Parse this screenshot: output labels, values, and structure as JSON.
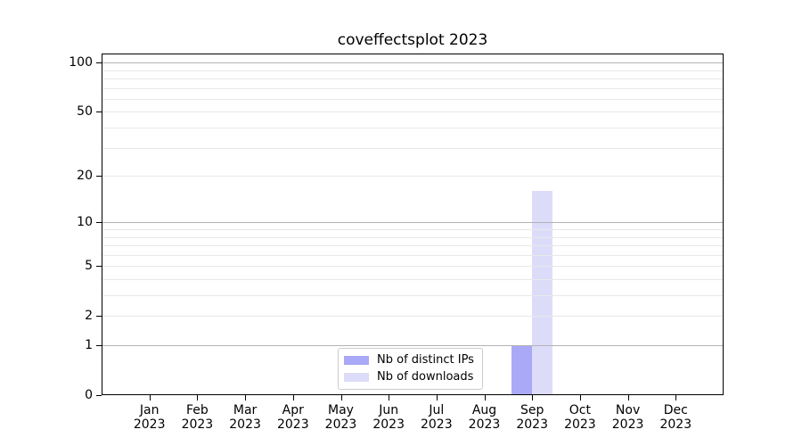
{
  "title": "coveffectsplot 2023",
  "chart_data": {
    "type": "bar",
    "title": "coveffectsplot 2023",
    "xlabel": "",
    "ylabel": "",
    "categories": [
      {
        "month": "Jan",
        "year": "2023"
      },
      {
        "month": "Feb",
        "year": "2023"
      },
      {
        "month": "Mar",
        "year": "2023"
      },
      {
        "month": "Apr",
        "year": "2023"
      },
      {
        "month": "May",
        "year": "2023"
      },
      {
        "month": "Jun",
        "year": "2023"
      },
      {
        "month": "Jul",
        "year": "2023"
      },
      {
        "month": "Aug",
        "year": "2023"
      },
      {
        "month": "Sep",
        "year": "2023"
      },
      {
        "month": "Oct",
        "year": "2023"
      },
      {
        "month": "Nov",
        "year": "2023"
      },
      {
        "month": "Dec",
        "year": "2023"
      }
    ],
    "series": [
      {
        "name": "Nb of distinct IPs",
        "color": "#a9a9f8",
        "values": [
          0,
          0,
          0,
          0,
          0,
          0,
          0,
          0,
          1,
          0,
          0,
          0
        ]
      },
      {
        "name": "Nb of downloads",
        "color": "#dcdcf9",
        "values": [
          0,
          0,
          0,
          0,
          0,
          0,
          0,
          0,
          16,
          0,
          0,
          0
        ]
      }
    ],
    "yscale": "log1p",
    "ylim": [
      0,
      113.6
    ],
    "yticks": [
      0,
      1,
      2,
      5,
      10,
      20,
      50,
      100
    ],
    "gridlines": {
      "major": [
        1,
        10,
        100
      ],
      "minor": [
        2,
        3,
        4,
        5,
        6,
        7,
        8,
        9,
        20,
        30,
        40,
        50,
        60,
        70,
        80,
        90
      ]
    },
    "grid": true,
    "legend_position": "lower-center-inside",
    "colors": {
      "major_grid": "#b3b3b3",
      "minor_grid": "#e8e8e8",
      "spine": "#000000",
      "text": "#000000",
      "background": "#ffffff"
    }
  }
}
